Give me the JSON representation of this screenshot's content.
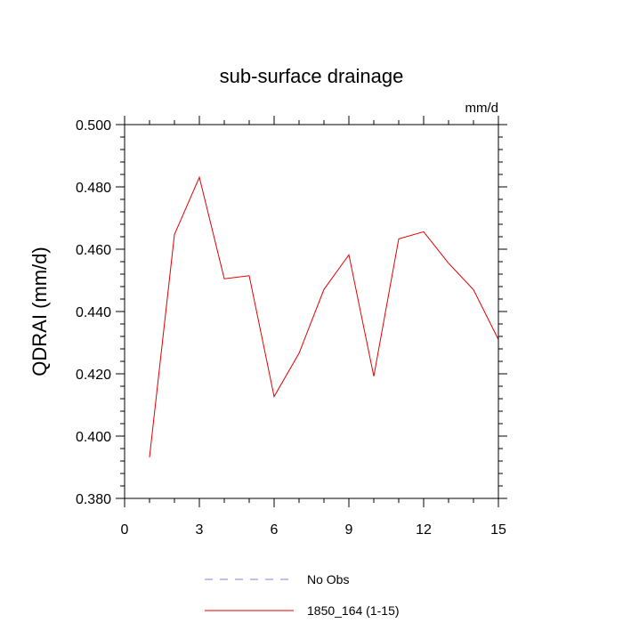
{
  "chart_data": {
    "type": "line",
    "title": "sub-surface drainage",
    "units": "mm/d",
    "ylabel": "QDRAI  (mm/d)",
    "xlabel": "",
    "xlim": [
      0,
      15
    ],
    "ylim": [
      0.38,
      0.5
    ],
    "xticks": [
      0,
      3,
      6,
      9,
      12,
      15
    ],
    "xtick_labels": [
      "0",
      "3",
      "6",
      "9",
      "12",
      "15"
    ],
    "yticks": [
      0.38,
      0.4,
      0.42,
      0.44,
      0.46,
      0.48,
      0.5
    ],
    "ytick_labels": [
      "0.380",
      "0.400",
      "0.420",
      "0.440",
      "0.460",
      "0.480",
      "0.500"
    ],
    "grid": false,
    "legend_position": "bottom",
    "series": [
      {
        "name": "No Obs",
        "color": "#8080e0",
        "style": "dashed",
        "x": [],
        "y": []
      },
      {
        "name": "1850_164 (1-15)",
        "color": "#e00000",
        "style": "solid",
        "x": [
          1,
          2,
          3,
          4,
          5,
          6,
          7,
          8,
          9,
          10,
          11,
          12,
          13,
          14,
          15
        ],
        "y": [
          0.3932,
          0.4647,
          0.4831,
          0.4505,
          0.4515,
          0.4127,
          0.4266,
          0.4471,
          0.4582,
          0.4192,
          0.4633,
          0.4656,
          0.4555,
          0.447,
          0.431
        ]
      }
    ]
  }
}
